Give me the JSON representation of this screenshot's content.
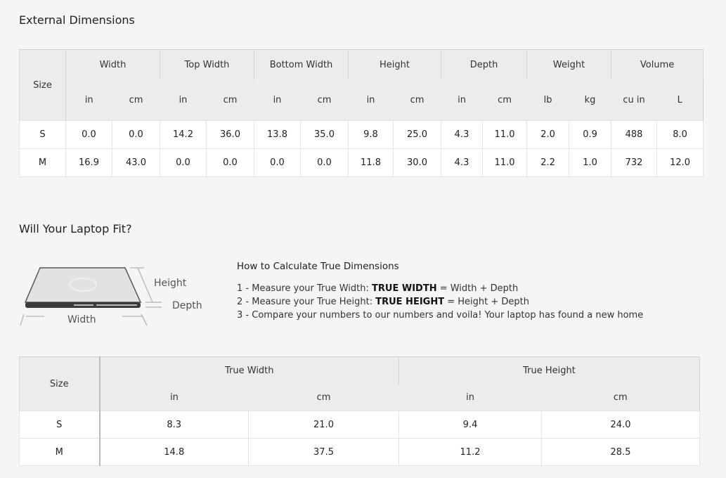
{
  "external": {
    "title": "External Dimensions",
    "size_label": "Size",
    "groups": [
      {
        "label": "Width",
        "units": [
          "in",
          "cm"
        ]
      },
      {
        "label": "Top Width",
        "units": [
          "in",
          "cm"
        ]
      },
      {
        "label": "Bottom Width",
        "units": [
          "in",
          "cm"
        ]
      },
      {
        "label": "Height",
        "units": [
          "in",
          "cm"
        ]
      },
      {
        "label": "Depth",
        "units": [
          "in",
          "cm"
        ]
      },
      {
        "label": "Weight",
        "units": [
          "lb",
          "kg"
        ]
      },
      {
        "label": "Volume",
        "units": [
          "cu in",
          "L"
        ]
      }
    ],
    "rows": [
      {
        "size": "S",
        "values": [
          "0.0",
          "0.0",
          "14.2",
          "36.0",
          "13.8",
          "35.0",
          "9.8",
          "25.0",
          "4.3",
          "11.0",
          "2.0",
          "0.9",
          "488",
          "8.0"
        ]
      },
      {
        "size": "M",
        "values": [
          "16.9",
          "43.0",
          "0.0",
          "0.0",
          "0.0",
          "0.0",
          "11.8",
          "30.0",
          "4.3",
          "11.0",
          "2.2",
          "1.0",
          "732",
          "12.0"
        ]
      }
    ]
  },
  "laptop": {
    "title": "Will Your Laptop Fit?",
    "diagram_labels": {
      "height": "Height",
      "depth": "Depth",
      "width": "Width"
    },
    "howto_title": "How to Calculate True Dimensions",
    "steps": [
      {
        "num": "1",
        "text": " - Measure your True Width: ",
        "bold": "TRUE WIDTH",
        "rest": " = Width + Depth"
      },
      {
        "num": "2",
        "text": " - Measure your True Height: ",
        "bold": "TRUE HEIGHT",
        "rest": " = Height + Depth"
      },
      {
        "num": "3",
        "text": " - Compare your numbers to our numbers and voila! Your laptop has found a new home",
        "bold": "",
        "rest": ""
      }
    ]
  },
  "true_dims": {
    "size_label": "Size",
    "groups": [
      {
        "label": "True Width",
        "units": [
          "in",
          "cm"
        ]
      },
      {
        "label": "True Height",
        "units": [
          "in",
          "cm"
        ]
      }
    ],
    "rows": [
      {
        "size": "S",
        "values": [
          "8.3",
          "21.0",
          "9.4",
          "24.0"
        ]
      },
      {
        "size": "M",
        "values": [
          "14.8",
          "37.5",
          "11.2",
          "28.5"
        ]
      }
    ]
  }
}
